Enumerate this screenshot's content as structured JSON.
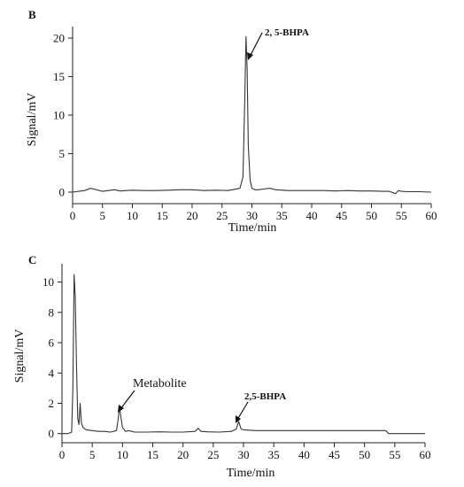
{
  "chart_data": [
    {
      "panel_label": "B",
      "type": "line",
      "xlabel": "Time/min",
      "ylabel": "Signal/mV",
      "xlim": [
        0,
        60
      ],
      "ylim": [
        -1.5,
        21.5
      ],
      "x_ticks": [
        0,
        5,
        10,
        15,
        20,
        25,
        30,
        35,
        40,
        45,
        50,
        55,
        60
      ],
      "y_ticks": [
        0,
        5,
        10,
        15,
        20
      ],
      "grid": false,
      "series": [
        {
          "x": [
            0,
            1,
            2,
            3,
            4,
            5,
            6,
            7,
            8,
            9,
            10,
            12,
            14,
            16,
            18,
            20,
            22,
            24,
            26,
            27,
            28,
            28.5,
            28.8,
            29.0,
            29.2,
            29.4,
            29.7,
            30.0,
            30.5,
            31,
            32,
            33,
            34,
            36,
            38,
            40,
            42,
            44,
            46,
            48,
            50,
            52,
            53,
            54,
            54.5,
            55,
            56,
            58,
            60
          ],
          "y": [
            0.0,
            0.1,
            0.2,
            0.5,
            0.3,
            0.1,
            0.2,
            0.3,
            0.15,
            0.2,
            0.25,
            0.2,
            0.2,
            0.25,
            0.3,
            0.3,
            0.2,
            0.25,
            0.2,
            0.35,
            0.5,
            2.0,
            12.0,
            20.2,
            16.0,
            6.0,
            1.5,
            0.5,
            0.3,
            0.3,
            0.4,
            0.5,
            0.3,
            0.2,
            0.2,
            0.2,
            0.2,
            0.15,
            0.2,
            0.15,
            0.15,
            0.1,
            0.1,
            -0.2,
            0.2,
            0.1,
            0.05,
            0.05,
            0.0
          ]
        }
      ],
      "annotations": [
        {
          "text": "2, 5-BHPA",
          "x": 29.2,
          "y": 20.2
        }
      ]
    },
    {
      "panel_label": "C",
      "type": "line",
      "xlabel": "Time/min",
      "ylabel": "Signal/mV",
      "xlim": [
        0,
        60
      ],
      "ylim": [
        -0.6,
        11.2
      ],
      "x_ticks": [
        0,
        5,
        10,
        15,
        20,
        25,
        30,
        35,
        40,
        45,
        50,
        55,
        60
      ],
      "y_ticks": [
        0,
        2,
        4,
        6,
        8,
        10
      ],
      "grid": false,
      "series": [
        {
          "x": [
            0,
            1,
            1.6,
            1.8,
            2.0,
            2.2,
            2.4,
            2.6,
            2.8,
            3.0,
            3.2,
            3.5,
            4.0,
            5,
            6,
            7,
            8,
            9,
            9.3,
            9.5,
            9.7,
            10.0,
            10.5,
            11,
            12,
            14,
            16,
            18,
            20,
            22,
            22.5,
            23,
            24,
            26,
            28,
            28.8,
            29.2,
            29.6,
            30,
            32,
            34,
            36,
            38,
            40,
            42,
            44,
            46,
            48,
            50,
            52,
            53.5,
            54,
            55,
            56,
            58,
            60
          ],
          "y": [
            0.0,
            0.0,
            0.1,
            3.0,
            10.5,
            9.0,
            4.5,
            1.0,
            0.6,
            2.0,
            0.7,
            0.4,
            0.25,
            0.2,
            0.15,
            0.15,
            0.1,
            0.2,
            1.0,
            1.8,
            1.2,
            0.4,
            0.15,
            0.2,
            0.1,
            0.1,
            0.12,
            0.1,
            0.1,
            0.15,
            0.35,
            0.15,
            0.12,
            0.1,
            0.15,
            0.3,
            0.8,
            0.3,
            0.25,
            0.2,
            0.2,
            0.2,
            0.2,
            0.2,
            0.2,
            0.2,
            0.2,
            0.2,
            0.2,
            0.2,
            0.2,
            0.0,
            0.0,
            0.0,
            0.0,
            0.0
          ]
        }
      ],
      "annotations": [
        {
          "text": "Metabolite",
          "x": 9.6,
          "y": 1.8
        },
        {
          "text": "2,5-BHPA",
          "x": 29.2,
          "y": 0.8
        }
      ]
    }
  ]
}
